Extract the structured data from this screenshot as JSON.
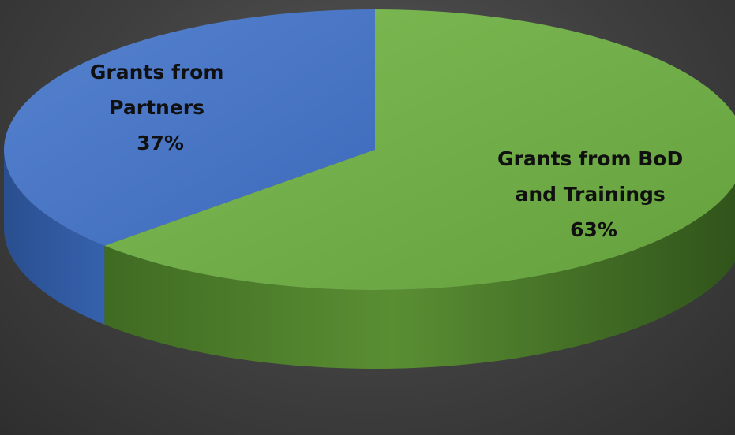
{
  "chart_data": {
    "type": "pie",
    "style": "3d",
    "slices": [
      {
        "key": "partners",
        "label_lines": [
          "Grants from",
          "Partners"
        ],
        "percent_label": "37%",
        "value": 37,
        "color": "#4472c4"
      },
      {
        "key": "bod",
        "label_lines": [
          "Grants from BoD",
          "and Trainings"
        ],
        "percent_label": "63%",
        "value": 63,
        "color": "#70ad47"
      }
    ],
    "start": "12 o'clock",
    "direction": "clockwise from the larger slice",
    "legend": "none"
  }
}
